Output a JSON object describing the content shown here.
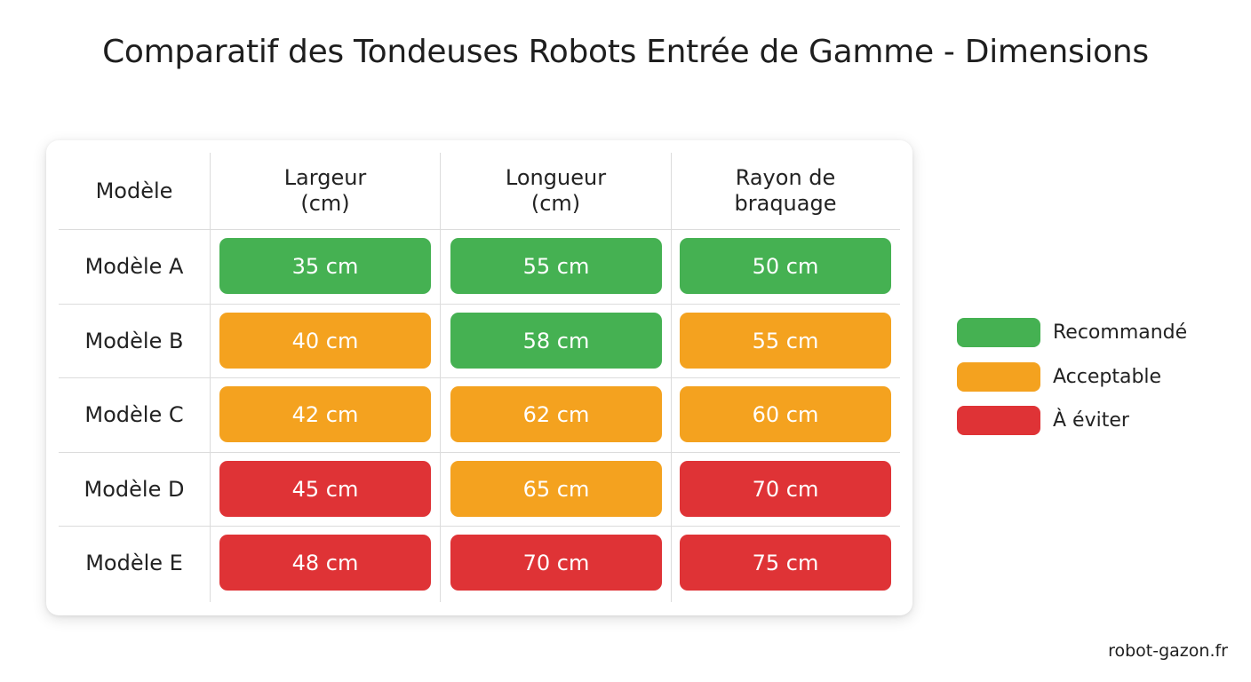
{
  "chart_data": {
    "type": "table",
    "title": "Comparatif des Tondeuses Robots Entrée de Gamme - Dimensions",
    "columns": [
      "Modèle",
      "Largeur (cm)",
      "Longueur (cm)",
      "Rayon de braquage"
    ],
    "rows": [
      {
        "model": "Modèle A",
        "cells": [
          {
            "value": 35,
            "label": "35 cm",
            "rating": "recommande"
          },
          {
            "value": 55,
            "label": "55 cm",
            "rating": "recommande"
          },
          {
            "value": 50,
            "label": "50 cm",
            "rating": "recommande"
          }
        ]
      },
      {
        "model": "Modèle B",
        "cells": [
          {
            "value": 40,
            "label": "40 cm",
            "rating": "acceptable"
          },
          {
            "value": 58,
            "label": "58 cm",
            "rating": "recommande"
          },
          {
            "value": 55,
            "label": "55 cm",
            "rating": "acceptable"
          }
        ]
      },
      {
        "model": "Modèle C",
        "cells": [
          {
            "value": 42,
            "label": "42 cm",
            "rating": "acceptable"
          },
          {
            "value": 62,
            "label": "62 cm",
            "rating": "acceptable"
          },
          {
            "value": 60,
            "label": "60 cm",
            "rating": "acceptable"
          }
        ]
      },
      {
        "model": "Modèle D",
        "cells": [
          {
            "value": 45,
            "label": "45 cm",
            "rating": "eviter"
          },
          {
            "value": 65,
            "label": "65 cm",
            "rating": "acceptable"
          },
          {
            "value": 70,
            "label": "70 cm",
            "rating": "eviter"
          }
        ]
      },
      {
        "model": "Modèle E",
        "cells": [
          {
            "value": 48,
            "label": "48 cm",
            "rating": "eviter"
          },
          {
            "value": 70,
            "label": "70 cm",
            "rating": "eviter"
          },
          {
            "value": 75,
            "label": "75 cm",
            "rating": "eviter"
          }
        ]
      }
    ],
    "legend": [
      {
        "key": "recommande",
        "label": "Recommandé",
        "color": "#45b152"
      },
      {
        "key": "acceptable",
        "label": "Acceptable",
        "color": "#f4a21f"
      },
      {
        "key": "eviter",
        "label": "À éviter",
        "color": "#df3336"
      }
    ],
    "legend_position": "right"
  },
  "footer": {
    "source": "robot-gazon.fr"
  }
}
